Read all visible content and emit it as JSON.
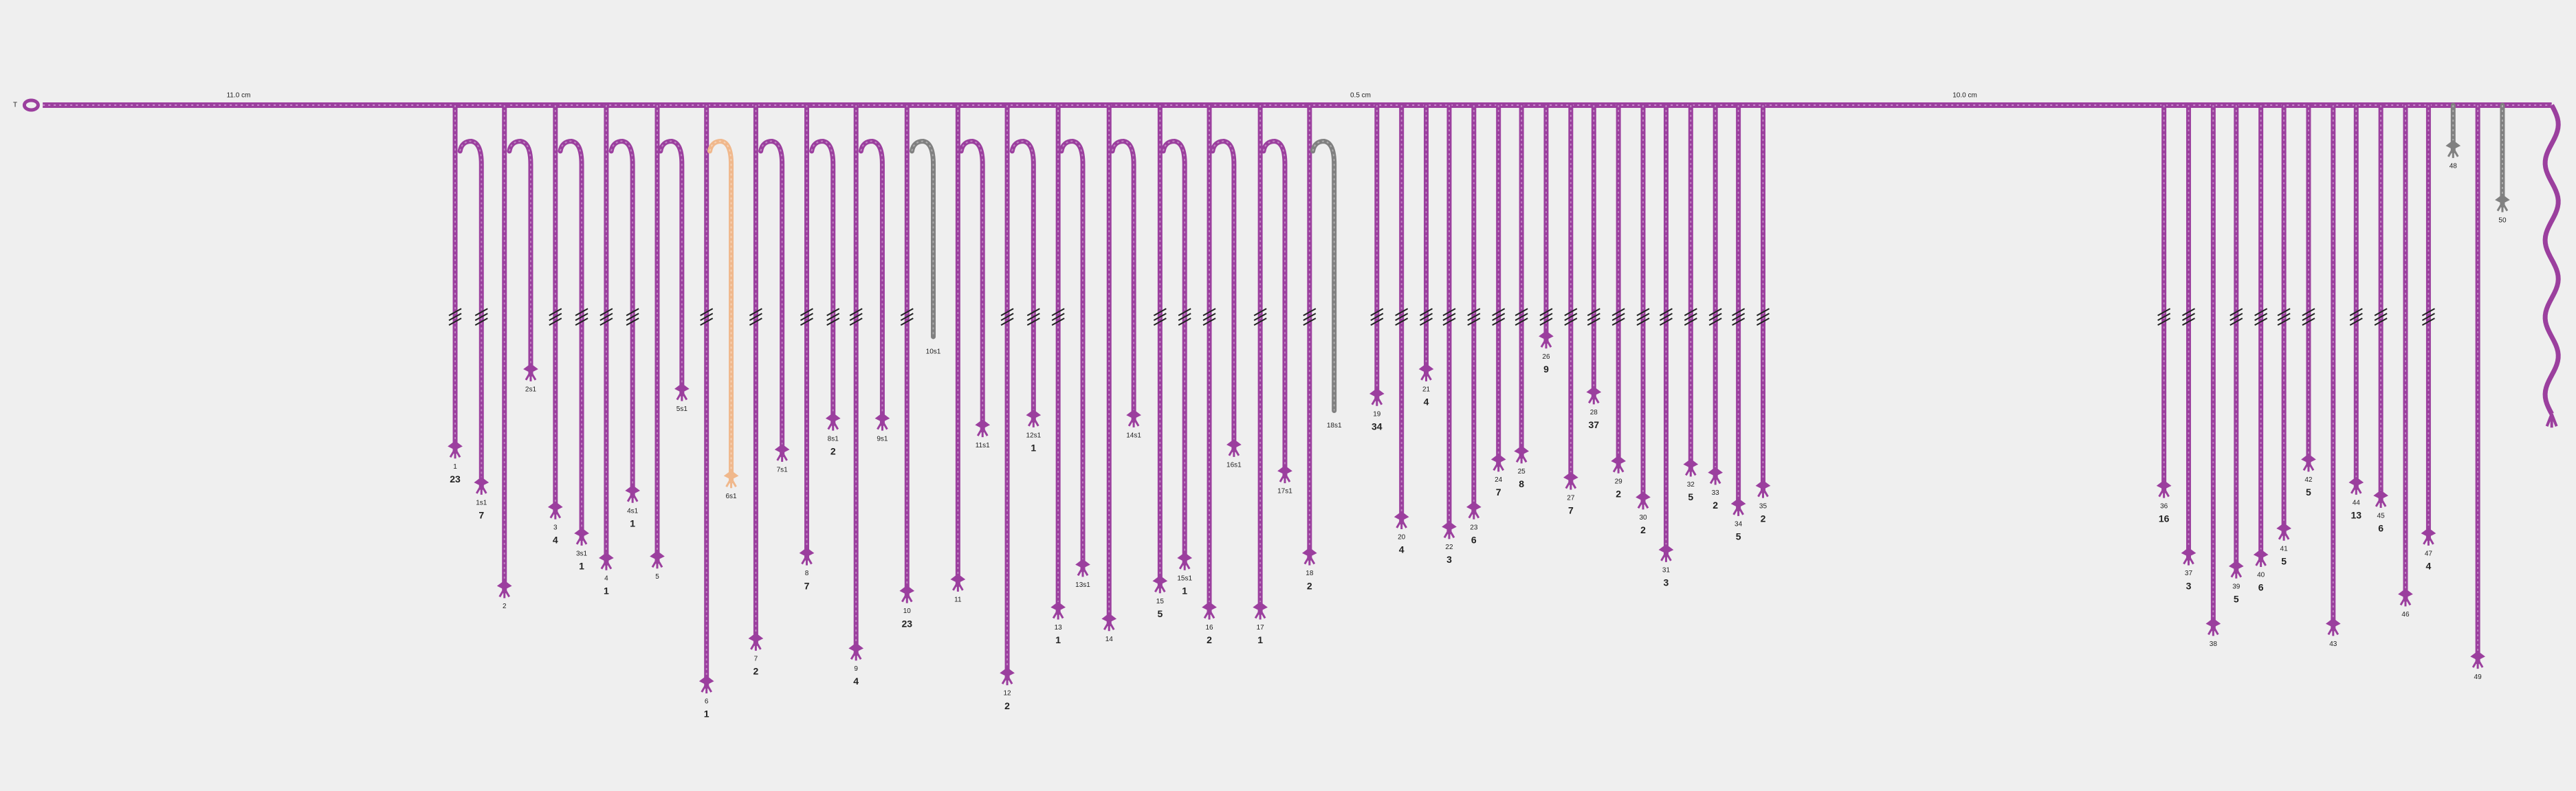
{
  "top_cord": {
    "start_label": "T",
    "segments": [
      "11.0 cm",
      "0.5 cm",
      "10.0 cm"
    ],
    "color": "#9b3f9e"
  },
  "cords": [
    {
      "label": "1",
      "value": "23"
    },
    {
      "label": "1s1",
      "value": "7"
    },
    {
      "label": "2"
    },
    {
      "label": "2s1"
    },
    {
      "label": "3",
      "value": "4"
    },
    {
      "label": "3s1",
      "value": "1"
    },
    {
      "label": "4",
      "value": "1"
    },
    {
      "label": "4s1",
      "value": "1"
    },
    {
      "label": "5"
    },
    {
      "label": "5s1"
    },
    {
      "label": "6",
      "value": "1"
    },
    {
      "label": "6s1",
      "color": "#f0b88c"
    },
    {
      "label": "7",
      "value": "2"
    },
    {
      "label": "7s1"
    },
    {
      "label": "8",
      "value": "7"
    },
    {
      "label": "8s1",
      "value": "2"
    },
    {
      "label": "9",
      "value": "4"
    },
    {
      "label": "9s1"
    },
    {
      "label": "10",
      "value": "23"
    },
    {
      "label": "10s1",
      "color": "#808080"
    },
    {
      "label": "11"
    },
    {
      "label": "11s1"
    },
    {
      "label": "12",
      "value": "2"
    },
    {
      "label": "12s1",
      "value": "1"
    },
    {
      "label": "13",
      "value": "1"
    },
    {
      "label": "13s1"
    },
    {
      "label": "14"
    },
    {
      "label": "14s1"
    },
    {
      "label": "15",
      "value": "5"
    },
    {
      "label": "15s1",
      "value": "1"
    },
    {
      "label": "16",
      "value": "2"
    },
    {
      "label": "16s1"
    },
    {
      "label": "17",
      "value": "1"
    },
    {
      "label": "17s1"
    },
    {
      "label": "18",
      "value": "2"
    },
    {
      "label": "18s1",
      "color": "#808080"
    },
    {
      "label": "19",
      "value": "34"
    },
    {
      "label": "20",
      "value": "4"
    },
    {
      "label": "21",
      "value": "4"
    },
    {
      "label": "22",
      "value": "3"
    },
    {
      "label": "23",
      "value": "6"
    },
    {
      "label": "24",
      "value": "7"
    },
    {
      "label": "25",
      "value": "8"
    },
    {
      "label": "26",
      "value": "9"
    },
    {
      "label": "27",
      "value": "7"
    },
    {
      "label": "28",
      "value": "37"
    },
    {
      "label": "29",
      "value": "2"
    },
    {
      "label": "30",
      "value": "2"
    },
    {
      "label": "31",
      "value": "3"
    },
    {
      "label": "32",
      "value": "5"
    },
    {
      "label": "33",
      "value": "2"
    },
    {
      "label": "34",
      "value": "5"
    },
    {
      "label": "35",
      "value": "2"
    },
    {
      "label": "36",
      "value": "16"
    },
    {
      "label": "37",
      "value": "3"
    },
    {
      "label": "38"
    },
    {
      "label": "39",
      "value": "5"
    },
    {
      "label": "40",
      "value": "6"
    },
    {
      "label": "41",
      "value": "5"
    },
    {
      "label": "42",
      "value": "5"
    },
    {
      "label": "43"
    },
    {
      "label": "44",
      "value": "13"
    },
    {
      "label": "45",
      "value": "6"
    },
    {
      "label": "46"
    },
    {
      "label": "47",
      "value": "4"
    },
    {
      "label": "48",
      "color": "#808080"
    },
    {
      "label": "49"
    },
    {
      "label": "50",
      "color": "#808080"
    }
  ]
}
